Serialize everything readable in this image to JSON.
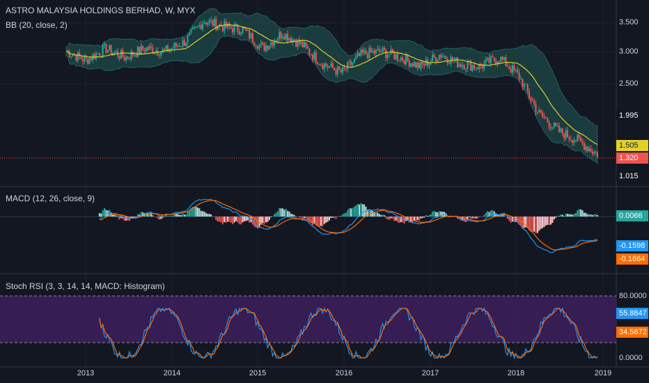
{
  "header": {
    "title": "ASTRO MALAYSIA HOLDINGS BERHAD, W, MYX",
    "bb_label": "BB (20, close, 2)",
    "macd_label": "MACD (12, 26, close, 9)",
    "stoch_label": "Stoch RSI (3, 3, 14, 14, MACD: Histogram)"
  },
  "colors": {
    "background": "#131722",
    "up": "#26a69a",
    "down": "#ef5350",
    "band_fill": "#1e4a4a",
    "basis": "#e0d12a",
    "macd": "#2196f3",
    "signal": "#ff6d00",
    "stoch_fill": "#3d1f5c"
  },
  "price_axis": {
    "ticks": [
      "3.500",
      "3.000",
      "2.500",
      "1.995",
      "1.505",
      "1.320",
      "1.015"
    ],
    "last_price": "1.320",
    "basis_value": "1.505",
    "high_marker": "1.995",
    "low_marker": "1.015"
  },
  "macd_axis": {
    "histogram_value": "0.0066",
    "macd_value": "-0.1598",
    "signal_value": "-0.1664"
  },
  "stoch_axis": {
    "ticks": [
      "80.0000",
      "0.0000"
    ],
    "k_value": "55.8847",
    "d_value": "34.5872"
  },
  "time_axis": {
    "labels": [
      "2013",
      "2014",
      "2015",
      "2016",
      "2017",
      "2018",
      "2019"
    ]
  },
  "chart_data": {
    "type": "line",
    "title": "ASTRO MALAYSIA HOLDINGS BERHAD, W, MYX",
    "x": [
      "2012-10",
      "2013-01",
      "2013-04",
      "2013-07",
      "2013-10",
      "2014-01",
      "2014-04",
      "2014-06",
      "2014-08",
      "2014-10",
      "2015-01",
      "2015-04",
      "2015-07",
      "2015-10",
      "2016-01",
      "2016-04",
      "2016-07",
      "2016-10",
      "2017-01",
      "2017-04",
      "2017-07",
      "2017-10",
      "2018-01",
      "2018-03",
      "2018-05",
      "2018-07",
      "2018-09",
      "2018-11"
    ],
    "series": [
      {
        "name": "close",
        "values": [
          3.0,
          2.85,
          3.05,
          2.9,
          3.05,
          3.0,
          3.15,
          3.5,
          3.4,
          3.35,
          3.05,
          3.3,
          3.1,
          2.8,
          2.65,
          2.95,
          3.0,
          2.9,
          2.75,
          2.95,
          2.8,
          2.75,
          2.9,
          2.6,
          2.0,
          1.7,
          1.55,
          1.32
        ]
      }
    ],
    "ylim": [
      1.0,
      3.7
    ],
    "grid": true
  }
}
